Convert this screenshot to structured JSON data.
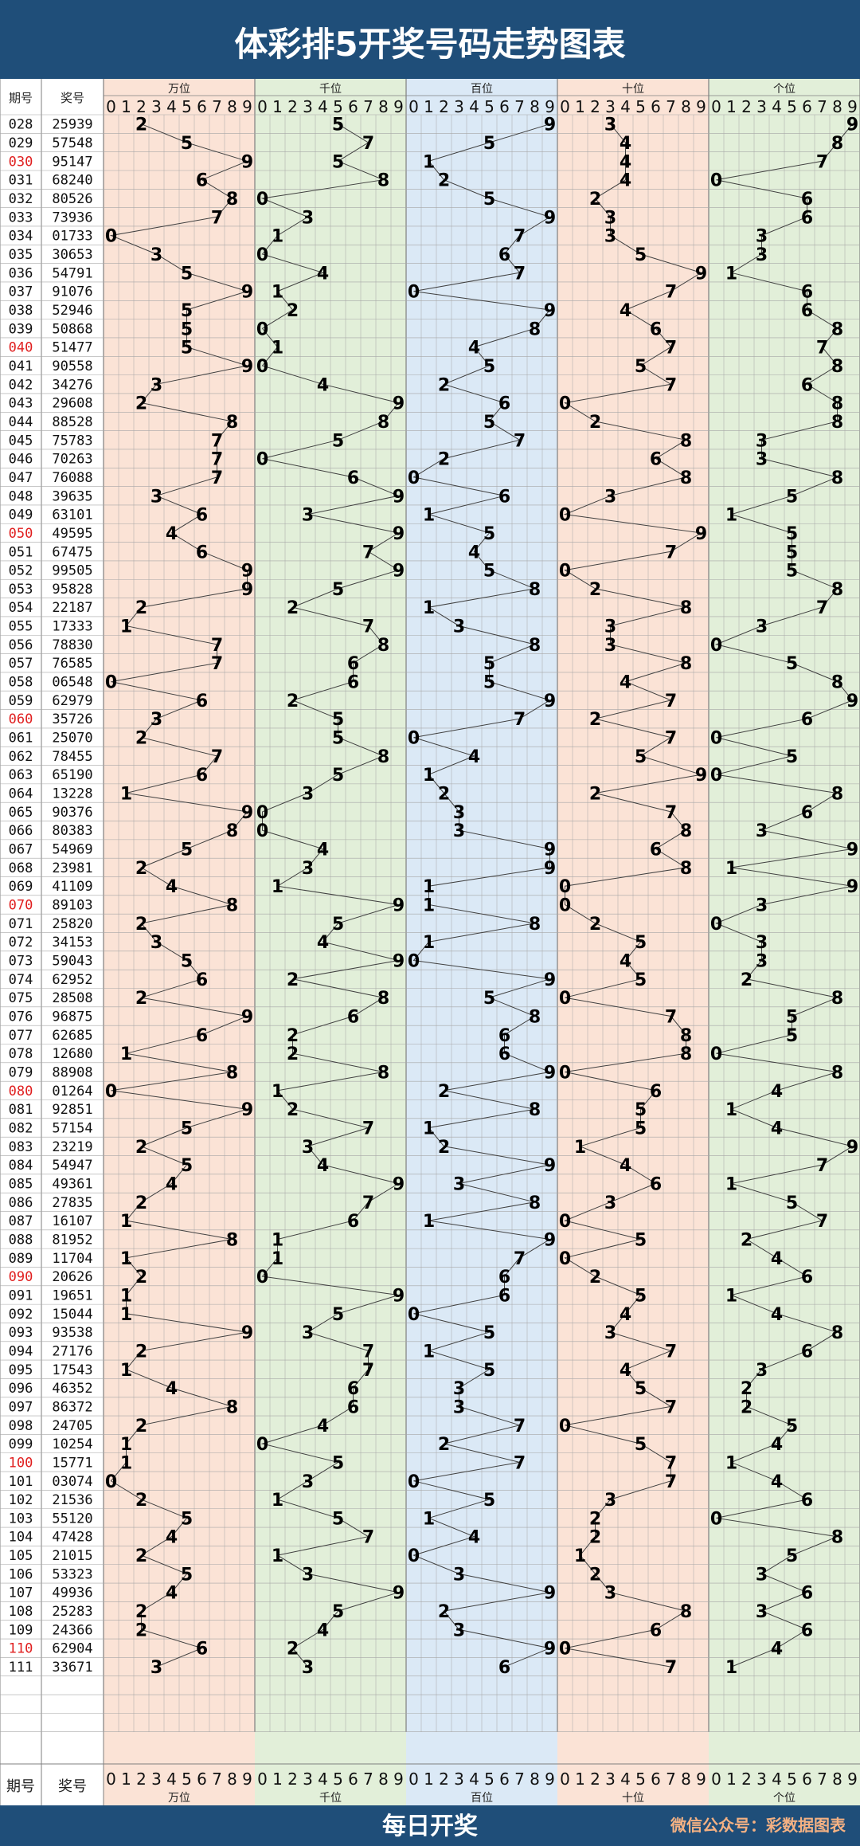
{
  "title": "体彩排5开奖号码走势图表",
  "footer": {
    "main": "每日开奖",
    "wechat": "微信公众号：彩数据图表"
  },
  "header": {
    "period_label": "期号",
    "number_label": "奖号"
  },
  "zones": [
    {
      "name": "万位",
      "bg": "#fbe3d6"
    },
    {
      "name": "千位",
      "bg": "#e2efd9"
    },
    {
      "name": "百位",
      "bg": "#dbe9f6"
    },
    {
      "name": "十位",
      "bg": "#fbe3d6"
    },
    {
      "name": "个位",
      "bg": "#e2efd9"
    }
  ],
  "digits_label": [
    "0",
    "1",
    "2",
    "3",
    "4",
    "5",
    "6",
    "7",
    "8",
    "9"
  ],
  "colors": {
    "title_bg": "#1f4e79",
    "title_text": "#ffffff",
    "highlight_period": "#e02020",
    "footer_wechat": "#f4b183",
    "line": "#404040",
    "grid": "#a6a6a6"
  },
  "chart_data": {
    "type": "table",
    "title": "体彩排5开奖号码走势图表",
    "highlight_periods": [
      "030",
      "040",
      "050",
      "060",
      "070",
      "080",
      "090",
      "100",
      "110"
    ],
    "empty_rows": 3,
    "rows": [
      {
        "period": "028",
        "number": "25939"
      },
      {
        "period": "029",
        "number": "57548"
      },
      {
        "period": "030",
        "number": "95147"
      },
      {
        "period": "031",
        "number": "68240"
      },
      {
        "period": "032",
        "number": "80526"
      },
      {
        "period": "033",
        "number": "73936"
      },
      {
        "period": "034",
        "number": "01733"
      },
      {
        "period": "035",
        "number": "30653"
      },
      {
        "period": "036",
        "number": "54791"
      },
      {
        "period": "037",
        "number": "91076"
      },
      {
        "period": "038",
        "number": "52946"
      },
      {
        "period": "039",
        "number": "50868"
      },
      {
        "period": "040",
        "number": "51477"
      },
      {
        "period": "041",
        "number": "90558"
      },
      {
        "period": "042",
        "number": "34276"
      },
      {
        "period": "043",
        "number": "29608"
      },
      {
        "period": "044",
        "number": "88528"
      },
      {
        "period": "045",
        "number": "75783"
      },
      {
        "period": "046",
        "number": "70263"
      },
      {
        "period": "047",
        "number": "76088"
      },
      {
        "period": "048",
        "number": "39635"
      },
      {
        "period": "049",
        "number": "63101"
      },
      {
        "period": "050",
        "number": "49595"
      },
      {
        "period": "051",
        "number": "67475"
      },
      {
        "period": "052",
        "number": "99505"
      },
      {
        "period": "053",
        "number": "95828"
      },
      {
        "period": "054",
        "number": "22187"
      },
      {
        "period": "055",
        "number": "17333"
      },
      {
        "period": "056",
        "number": "78830"
      },
      {
        "period": "057",
        "number": "76585"
      },
      {
        "period": "058",
        "number": "06548"
      },
      {
        "period": "059",
        "number": "62979"
      },
      {
        "period": "060",
        "number": "35726"
      },
      {
        "period": "061",
        "number": "25070"
      },
      {
        "period": "062",
        "number": "78455"
      },
      {
        "period": "063",
        "number": "65190"
      },
      {
        "period": "064",
        "number": "13228"
      },
      {
        "period": "065",
        "number": "90376"
      },
      {
        "period": "066",
        "number": "80383"
      },
      {
        "period": "067",
        "number": "54969"
      },
      {
        "period": "068",
        "number": "23981"
      },
      {
        "period": "069",
        "number": "41109"
      },
      {
        "period": "070",
        "number": "89103"
      },
      {
        "period": "071",
        "number": "25820"
      },
      {
        "period": "072",
        "number": "34153"
      },
      {
        "period": "073",
        "number": "59043"
      },
      {
        "period": "074",
        "number": "62952"
      },
      {
        "period": "075",
        "number": "28508"
      },
      {
        "period": "076",
        "number": "96875"
      },
      {
        "period": "077",
        "number": "62685"
      },
      {
        "period": "078",
        "number": "12680"
      },
      {
        "period": "079",
        "number": "88908"
      },
      {
        "period": "080",
        "number": "01264"
      },
      {
        "period": "081",
        "number": "92851"
      },
      {
        "period": "082",
        "number": "57154"
      },
      {
        "period": "083",
        "number": "23219"
      },
      {
        "period": "084",
        "number": "54947"
      },
      {
        "period": "085",
        "number": "49361"
      },
      {
        "period": "086",
        "number": "27835"
      },
      {
        "period": "087",
        "number": "16107"
      },
      {
        "period": "088",
        "number": "81952"
      },
      {
        "period": "089",
        "number": "11704"
      },
      {
        "period": "090",
        "number": "20626"
      },
      {
        "period": "091",
        "number": "19651"
      },
      {
        "period": "092",
        "number": "15044"
      },
      {
        "period": "093",
        "number": "93538"
      },
      {
        "period": "094",
        "number": "27176"
      },
      {
        "period": "095",
        "number": "17543"
      },
      {
        "period": "096",
        "number": "46352"
      },
      {
        "period": "097",
        "number": "86372"
      },
      {
        "period": "098",
        "number": "24705"
      },
      {
        "period": "099",
        "number": "10254"
      },
      {
        "period": "100",
        "number": "15771"
      },
      {
        "period": "101",
        "number": "03074"
      },
      {
        "period": "102",
        "number": "21536"
      },
      {
        "period": "103",
        "number": "55120"
      },
      {
        "period": "104",
        "number": "47428"
      },
      {
        "period": "105",
        "number": "21015"
      },
      {
        "period": "106",
        "number": "53323"
      },
      {
        "period": "107",
        "number": "49936"
      },
      {
        "period": "108",
        "number": "25283"
      },
      {
        "period": "109",
        "number": "24366"
      },
      {
        "period": "110",
        "number": "62904"
      },
      {
        "period": "111",
        "number": "33671"
      }
    ]
  }
}
